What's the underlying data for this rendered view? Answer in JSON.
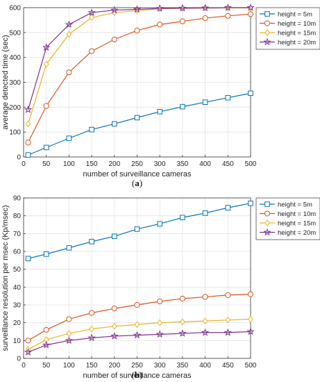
{
  "chart_data": [
    {
      "type": "line",
      "panel_label": "(a)",
      "xlabel": "number of surveillance cameras",
      "ylabel": "average detected time (sec)",
      "x": [
        10,
        50,
        100,
        150,
        200,
        250,
        300,
        350,
        400,
        450,
        500
      ],
      "xlim": [
        0,
        500
      ],
      "ylim": [
        0,
        600
      ],
      "xticks": [
        0,
        50,
        100,
        150,
        200,
        250,
        300,
        350,
        400,
        450,
        500
      ],
      "yticks": [
        0,
        100,
        200,
        300,
        400,
        500,
        600
      ],
      "grid": true,
      "legend_position": "top-right",
      "series": [
        {
          "name": "height = 5m",
          "color": "#0072BD",
          "marker": "square",
          "values": [
            8,
            38,
            75,
            110,
            133,
            158,
            182,
            202,
            220,
            238,
            256
          ]
        },
        {
          "name": "height = 10m",
          "color": "#D95319",
          "marker": "circle",
          "values": [
            58,
            205,
            340,
            425,
            472,
            508,
            532,
            545,
            558,
            567,
            574
          ]
        },
        {
          "name": "height = 15m",
          "color": "#EDB120",
          "marker": "diamond",
          "values": [
            133,
            373,
            493,
            560,
            580,
            588,
            595,
            597,
            598,
            599,
            599
          ]
        },
        {
          "name": "height = 20m",
          "color": "#7E2F8E",
          "marker": "star",
          "values": [
            190,
            440,
            532,
            580,
            590,
            593,
            597,
            598,
            599,
            600,
            600
          ]
        }
      ]
    },
    {
      "type": "line",
      "panel_label": "(b)",
      "xlabel": "number of surveillance cameras",
      "ylabel": "surveillance resolution per msec (Kp/msec)",
      "x": [
        10,
        50,
        100,
        150,
        200,
        250,
        300,
        350,
        400,
        450,
        500
      ],
      "xlim": [
        0,
        500
      ],
      "ylim": [
        0,
        90
      ],
      "xticks": [
        0,
        50,
        100,
        150,
        200,
        250,
        300,
        350,
        400,
        450,
        500
      ],
      "yticks": [
        0,
        10,
        20,
        30,
        40,
        50,
        60,
        70,
        80,
        90
      ],
      "grid": true,
      "legend_position": "top-right",
      "series": [
        {
          "name": "height = 5m",
          "color": "#0072BD",
          "marker": "square",
          "values": [
            56,
            58.5,
            62,
            65.5,
            68.5,
            72.5,
            75.5,
            79,
            81.5,
            84.5,
            87
          ]
        },
        {
          "name": "height = 10m",
          "color": "#D95319",
          "marker": "circle",
          "values": [
            10,
            16,
            22,
            25.5,
            28,
            30,
            32,
            33.5,
            34.5,
            35.5,
            36
          ]
        },
        {
          "name": "height = 15m",
          "color": "#EDB120",
          "marker": "diamond",
          "values": [
            5,
            10.5,
            14,
            16.5,
            18,
            19,
            20,
            20.5,
            21,
            21.5,
            22
          ]
        },
        {
          "name": "height = 20m",
          "color": "#7E2F8E",
          "marker": "star",
          "values": [
            3.5,
            7.5,
            10,
            11.5,
            12.5,
            13,
            13.5,
            14,
            14.5,
            14.5,
            15
          ]
        }
      ]
    }
  ]
}
